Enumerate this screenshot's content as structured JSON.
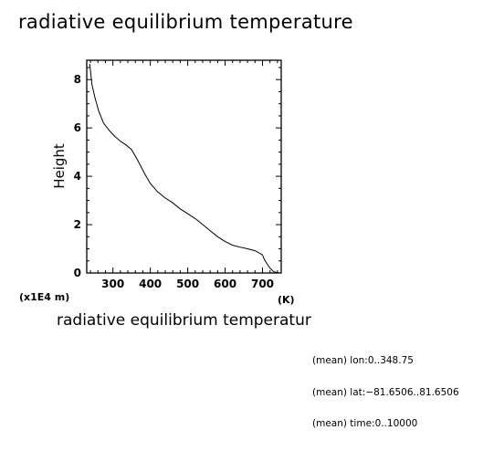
{
  "title": "radiative equilibrium temperature",
  "chart_data": {
    "type": "line",
    "title": "radiative equilibrium temperature",
    "xlabel": "radiative equilibrium temperatur",
    "xunit": "(K)",
    "ylabel": "Height",
    "yunit": "(x1E4 m)",
    "xlim": [
      230,
      750
    ],
    "ylim": [
      0,
      8.8
    ],
    "xticks": [
      300,
      400,
      500,
      600,
      700
    ],
    "yticks": [
      0,
      2,
      4,
      6,
      8
    ],
    "grid": false,
    "series": [
      {
        "x": [
          238,
          244,
          252,
          262,
          275,
          290,
          305,
          320,
          335,
          350,
          365,
          375,
          385,
          400,
          420,
          440,
          460,
          480,
          500,
          520,
          540,
          560,
          580,
          600,
          620,
          640,
          660,
          680,
          700,
          705,
          712,
          720,
          730,
          740,
          743
        ],
        "y": [
          8.65,
          7.8,
          7.25,
          6.7,
          6.2,
          5.9,
          5.65,
          5.45,
          5.3,
          5.1,
          4.7,
          4.4,
          4.1,
          3.7,
          3.35,
          3.1,
          2.9,
          2.65,
          2.45,
          2.25,
          2.0,
          1.75,
          1.5,
          1.3,
          1.15,
          1.07,
          1.0,
          0.92,
          0.75,
          0.55,
          0.38,
          0.2,
          0.05,
          0.02,
          0.0
        ]
      }
    ]
  },
  "notes": [
    "(mean) lon:0..348.75",
    "(mean) lat:−81.6506..81.6506",
    "(mean) time:0..10000"
  ]
}
